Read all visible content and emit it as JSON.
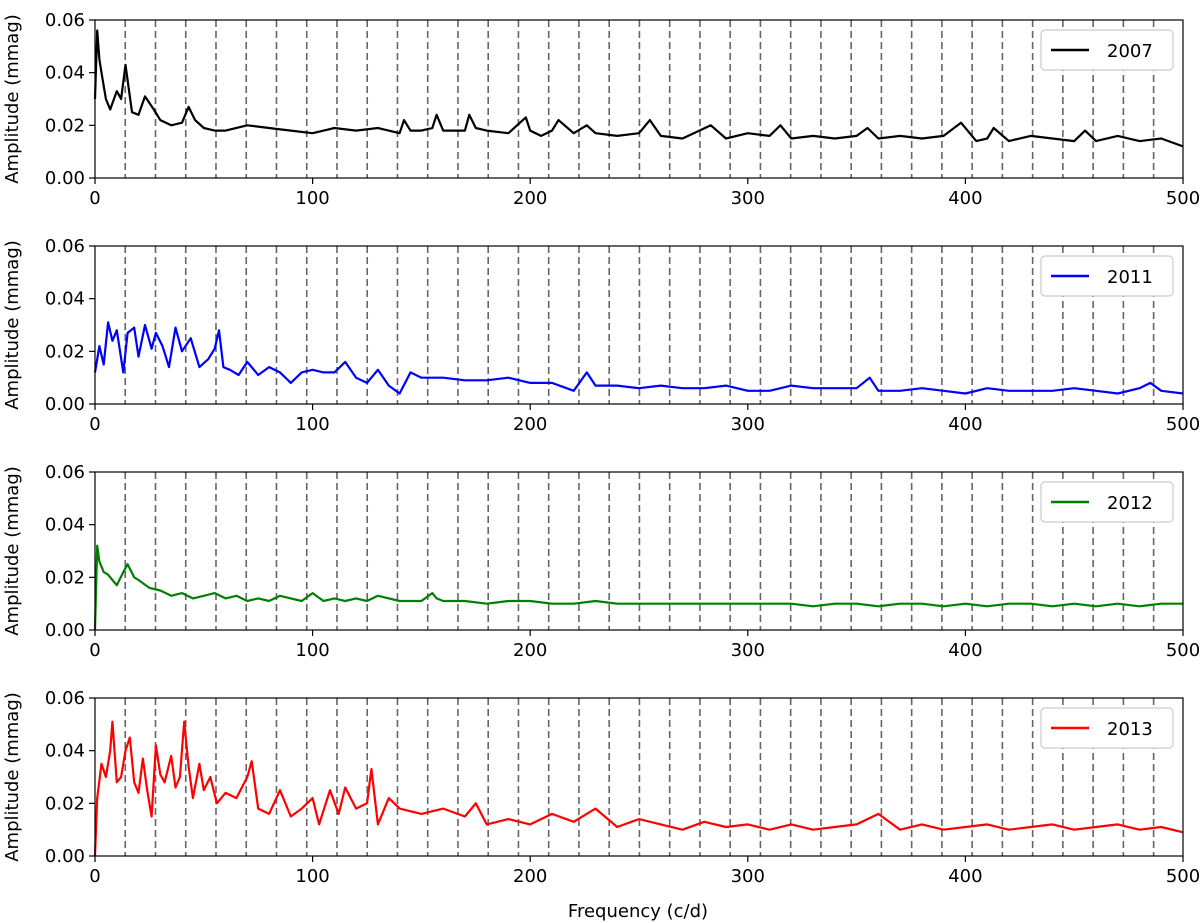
{
  "figure": {
    "xlabel": "Frequency (c/d)"
  },
  "chart_data": [
    {
      "type": "line",
      "legend": "2007",
      "color": "#000000",
      "xlim": [
        0,
        500
      ],
      "ylim": [
        0,
        0.06
      ],
      "ylabel": "Amplitude (mmag)",
      "xticks": [
        "0",
        "100",
        "200",
        "300",
        "400",
        "500"
      ],
      "yticks": [
        "0.00",
        "0.02",
        "0.04",
        "0.06"
      ],
      "legend_position": "top-right",
      "grid": false,
      "vlines": [
        13.9,
        27.8,
        41.7,
        55.6,
        69.5,
        83.4,
        97.3,
        111.2,
        125.1,
        139.0,
        152.9,
        166.8,
        180.7,
        194.6,
        208.5,
        222.4,
        236.3,
        250.2,
        264.1,
        278.0,
        291.9,
        305.8,
        319.7,
        333.6,
        347.5,
        361.4,
        375.3,
        389.2,
        403.1,
        417.0,
        430.9,
        444.8,
        458.7,
        472.6,
        486.5
      ],
      "x": [
        0,
        1,
        2,
        3,
        5,
        7,
        10,
        12,
        14,
        17,
        20,
        23,
        27,
        30,
        35,
        40,
        43,
        46,
        50,
        55,
        60,
        70,
        80,
        90,
        100,
        110,
        120,
        130,
        140,
        142,
        145,
        150,
        155,
        157,
        160,
        170,
        172,
        175,
        180,
        190,
        198,
        200,
        205,
        210,
        213,
        220,
        226,
        230,
        240,
        250,
        255,
        260,
        270,
        283,
        290,
        300,
        310,
        315,
        320,
        330,
        340,
        350,
        355,
        360,
        370,
        380,
        390,
        398,
        405,
        410,
        413,
        420,
        430,
        440,
        450,
        455,
        460,
        470,
        480,
        490,
        500
      ],
      "values": [
        0.03,
        0.056,
        0.045,
        0.04,
        0.03,
        0.026,
        0.033,
        0.03,
        0.043,
        0.025,
        0.024,
        0.031,
        0.026,
        0.022,
        0.02,
        0.021,
        0.027,
        0.022,
        0.019,
        0.018,
        0.018,
        0.02,
        0.019,
        0.018,
        0.017,
        0.019,
        0.018,
        0.019,
        0.017,
        0.022,
        0.018,
        0.018,
        0.019,
        0.024,
        0.018,
        0.018,
        0.024,
        0.019,
        0.018,
        0.017,
        0.023,
        0.018,
        0.016,
        0.018,
        0.022,
        0.017,
        0.02,
        0.017,
        0.016,
        0.017,
        0.022,
        0.016,
        0.015,
        0.02,
        0.015,
        0.017,
        0.016,
        0.02,
        0.015,
        0.016,
        0.015,
        0.016,
        0.019,
        0.015,
        0.016,
        0.015,
        0.016,
        0.021,
        0.014,
        0.015,
        0.019,
        0.014,
        0.016,
        0.015,
        0.014,
        0.018,
        0.014,
        0.016,
        0.014,
        0.015,
        0.012
      ]
    },
    {
      "type": "line",
      "legend": "2011",
      "color": "#0000ff",
      "xlim": [
        0,
        500
      ],
      "ylim": [
        0,
        0.06
      ],
      "ylabel": "Amplitude (mmag)",
      "xticks": [
        "0",
        "100",
        "200",
        "300",
        "400",
        "500"
      ],
      "yticks": [
        "0.00",
        "0.02",
        "0.04",
        "0.06"
      ],
      "legend_position": "top-right",
      "grid": false,
      "vlines": [
        13.9,
        27.8,
        41.7,
        55.6,
        69.5,
        83.4,
        97.3,
        111.2,
        125.1,
        139.0,
        152.9,
        166.8,
        180.7,
        194.6,
        208.5,
        222.4,
        236.3,
        250.2,
        264.1,
        278.0,
        291.9,
        305.8,
        319.7,
        333.6,
        347.5,
        361.4,
        375.3,
        389.2,
        403.1,
        417.0,
        430.9,
        444.8,
        458.7,
        472.6,
        486.5
      ],
      "x": [
        0,
        2,
        4,
        6,
        8,
        10,
        13,
        15,
        18,
        20,
        23,
        26,
        28,
        31,
        34,
        37,
        40,
        44,
        48,
        52,
        55,
        57,
        59,
        62,
        66,
        70,
        75,
        80,
        85,
        90,
        95,
        100,
        105,
        110,
        115,
        120,
        125,
        130,
        135,
        140,
        145,
        150,
        160,
        170,
        180,
        190,
        200,
        210,
        220,
        226,
        230,
        240,
        250,
        260,
        270,
        280,
        290,
        300,
        310,
        320,
        330,
        340,
        350,
        356,
        360,
        370,
        380,
        390,
        400,
        410,
        420,
        430,
        440,
        450,
        460,
        470,
        480,
        485,
        490,
        500
      ],
      "values": [
        0.012,
        0.022,
        0.015,
        0.031,
        0.024,
        0.028,
        0.012,
        0.027,
        0.029,
        0.018,
        0.03,
        0.021,
        0.027,
        0.022,
        0.014,
        0.029,
        0.02,
        0.025,
        0.014,
        0.017,
        0.021,
        0.028,
        0.014,
        0.013,
        0.011,
        0.016,
        0.011,
        0.014,
        0.012,
        0.008,
        0.012,
        0.013,
        0.012,
        0.012,
        0.016,
        0.01,
        0.008,
        0.013,
        0.007,
        0.004,
        0.012,
        0.01,
        0.01,
        0.009,
        0.009,
        0.01,
        0.008,
        0.008,
        0.005,
        0.012,
        0.007,
        0.007,
        0.006,
        0.007,
        0.006,
        0.006,
        0.007,
        0.005,
        0.005,
        0.007,
        0.006,
        0.006,
        0.006,
        0.01,
        0.005,
        0.005,
        0.006,
        0.005,
        0.004,
        0.006,
        0.005,
        0.005,
        0.005,
        0.006,
        0.005,
        0.004,
        0.006,
        0.008,
        0.005,
        0.004
      ]
    },
    {
      "type": "line",
      "legend": "2012",
      "color": "#008000",
      "xlim": [
        0,
        500
      ],
      "ylim": [
        0,
        0.06
      ],
      "ylabel": "Amplitude (mmag)",
      "xticks": [
        "0",
        "100",
        "200",
        "300",
        "400",
        "500"
      ],
      "yticks": [
        "0.00",
        "0.02",
        "0.04",
        "0.06"
      ],
      "legend_position": "top-right",
      "grid": false,
      "vlines": [
        13.9,
        27.8,
        41.7,
        55.6,
        69.5,
        83.4,
        97.3,
        111.2,
        125.1,
        139.0,
        152.9,
        166.8,
        180.7,
        194.6,
        208.5,
        222.4,
        236.3,
        250.2,
        264.1,
        278.0,
        291.9,
        305.8,
        319.7,
        333.6,
        347.5,
        361.4,
        375.3,
        389.2,
        403.1,
        417.0,
        430.9,
        444.8,
        458.7,
        472.6,
        486.5
      ],
      "x": [
        0,
        1,
        2,
        4,
        6,
        8,
        10,
        13,
        15,
        18,
        20,
        25,
        30,
        35,
        40,
        45,
        50,
        55,
        60,
        65,
        70,
        75,
        80,
        85,
        90,
        95,
        100,
        105,
        110,
        115,
        120,
        125,
        130,
        140,
        150,
        155,
        157,
        160,
        170,
        180,
        190,
        200,
        210,
        220,
        230,
        240,
        250,
        260,
        270,
        280,
        290,
        300,
        310,
        320,
        330,
        340,
        350,
        360,
        370,
        380,
        390,
        400,
        410,
        420,
        430,
        440,
        450,
        460,
        470,
        480,
        490,
        500
      ],
      "values": [
        0.0,
        0.032,
        0.026,
        0.022,
        0.021,
        0.019,
        0.017,
        0.022,
        0.025,
        0.02,
        0.019,
        0.016,
        0.015,
        0.013,
        0.014,
        0.012,
        0.013,
        0.014,
        0.012,
        0.013,
        0.011,
        0.012,
        0.011,
        0.013,
        0.012,
        0.011,
        0.014,
        0.011,
        0.012,
        0.011,
        0.012,
        0.011,
        0.013,
        0.011,
        0.011,
        0.014,
        0.012,
        0.011,
        0.011,
        0.01,
        0.011,
        0.011,
        0.01,
        0.01,
        0.011,
        0.01,
        0.01,
        0.01,
        0.01,
        0.01,
        0.01,
        0.01,
        0.01,
        0.01,
        0.009,
        0.01,
        0.01,
        0.009,
        0.01,
        0.01,
        0.009,
        0.01,
        0.009,
        0.01,
        0.01,
        0.009,
        0.01,
        0.009,
        0.01,
        0.009,
        0.01,
        0.01
      ]
    },
    {
      "type": "line",
      "legend": "2013",
      "color": "#ff0000",
      "xlim": [
        0,
        500
      ],
      "ylim": [
        0,
        0.06
      ],
      "ylabel": "Amplitude (mmag)",
      "xticks": [
        "0",
        "100",
        "200",
        "300",
        "400",
        "500"
      ],
      "yticks": [
        "0.00",
        "0.02",
        "0.04",
        "0.06"
      ],
      "legend_position": "top-right",
      "grid": false,
      "vlines": [
        13.9,
        27.8,
        41.7,
        55.6,
        69.5,
        83.4,
        97.3,
        111.2,
        125.1,
        139.0,
        152.9,
        166.8,
        180.7,
        194.6,
        208.5,
        222.4,
        236.3,
        250.2,
        264.1,
        278.0,
        291.9,
        305.8,
        319.7,
        333.6,
        347.5,
        361.4,
        375.3,
        389.2,
        403.1,
        417.0,
        430.9,
        444.8,
        458.7,
        472.6,
        486.5
      ],
      "x": [
        0,
        1,
        3,
        5,
        7,
        8,
        10,
        12,
        14,
        16,
        18,
        20,
        22,
        24,
        26,
        28,
        30,
        32,
        35,
        37,
        39,
        41,
        43,
        45,
        48,
        50,
        53,
        56,
        60,
        65,
        70,
        72,
        75,
        80,
        85,
        90,
        95,
        100,
        103,
        108,
        112,
        115,
        120,
        125,
        127,
        130,
        135,
        140,
        150,
        160,
        170,
        175,
        180,
        190,
        200,
        210,
        220,
        230,
        240,
        250,
        260,
        270,
        280,
        290,
        300,
        310,
        320,
        330,
        340,
        350,
        360,
        370,
        380,
        390,
        400,
        410,
        420,
        430,
        440,
        450,
        460,
        470,
        480,
        490,
        500
      ],
      "values": [
        0.0,
        0.022,
        0.035,
        0.03,
        0.04,
        0.051,
        0.028,
        0.03,
        0.04,
        0.045,
        0.028,
        0.024,
        0.037,
        0.025,
        0.015,
        0.042,
        0.031,
        0.028,
        0.038,
        0.026,
        0.03,
        0.051,
        0.034,
        0.022,
        0.035,
        0.025,
        0.03,
        0.02,
        0.024,
        0.022,
        0.03,
        0.036,
        0.018,
        0.016,
        0.025,
        0.015,
        0.018,
        0.022,
        0.012,
        0.025,
        0.016,
        0.026,
        0.018,
        0.02,
        0.033,
        0.012,
        0.022,
        0.018,
        0.016,
        0.018,
        0.015,
        0.02,
        0.012,
        0.014,
        0.012,
        0.016,
        0.013,
        0.018,
        0.011,
        0.014,
        0.012,
        0.01,
        0.013,
        0.011,
        0.012,
        0.01,
        0.012,
        0.01,
        0.011,
        0.012,
        0.016,
        0.01,
        0.012,
        0.01,
        0.011,
        0.012,
        0.01,
        0.011,
        0.012,
        0.01,
        0.011,
        0.012,
        0.01,
        0.011,
        0.009
      ]
    }
  ]
}
